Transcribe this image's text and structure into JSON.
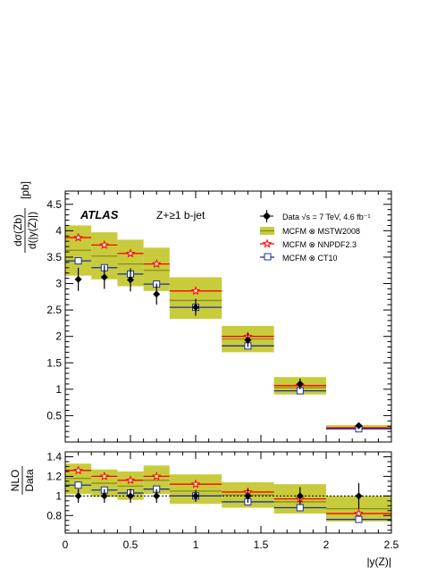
{
  "chart_data": [
    {
      "type": "scatter",
      "panel": "main",
      "experiment": "ATLAS",
      "selection": "Z+≥1 b-jet",
      "ylabel_num": "dσ(Zb)",
      "ylabel_den": "d(|y(Z)|)",
      "ylabel_unit": "[pb]",
      "xlim": [
        0,
        2.5
      ],
      "ylim": [
        0,
        4.75
      ],
      "yticks": [
        0.5,
        1,
        1.5,
        2,
        2.5,
        3,
        3.5,
        4,
        4.5
      ],
      "ytick_labels": [
        "0.5",
        "1",
        "1.5",
        "2",
        "2.5",
        "3",
        "3.5",
        "4",
        "4.5"
      ],
      "legend_position": "top-right",
      "legend": [
        {
          "key": "data",
          "label": "Data √s = 7 TeV, 4.6 fb⁻¹"
        },
        {
          "key": "mstw",
          "label": "MCFM ⊗ MSTW2008"
        },
        {
          "key": "nnpdf",
          "label": "MCFM ⊗ NNPDF2.3"
        },
        {
          "key": "ct10",
          "label": "MCFM ⊗ CT10"
        }
      ],
      "colors": {
        "band": "#c8cc3c",
        "mstw": "#8a8c1a",
        "nnpdf": "#ff0000",
        "ct10": "#1f2fa0",
        "data": "#000000"
      },
      "bins": [
        [
          0,
          0.2
        ],
        [
          0.2,
          0.4
        ],
        [
          0.4,
          0.6
        ],
        [
          0.6,
          0.8
        ],
        [
          0.8,
          1.2
        ],
        [
          1.2,
          1.6
        ],
        [
          1.6,
          2.0
        ],
        [
          2.0,
          2.5
        ]
      ],
      "series": [
        {
          "key": "data",
          "x": [
            0.1,
            0.3,
            0.5,
            0.7,
            1.0,
            1.4,
            1.8,
            2.25
          ],
          "values": [
            3.08,
            3.12,
            3.07,
            2.8,
            2.55,
            1.93,
            1.1,
            0.31
          ],
          "err": [
            0.22,
            0.22,
            0.22,
            0.2,
            0.16,
            0.13,
            0.1,
            0.04
          ]
        },
        {
          "key": "mstw",
          "values": [
            3.63,
            3.52,
            3.37,
            3.25,
            2.68,
            1.95,
            1.03,
            0.27
          ],
          "band_low": [
            3.15,
            3.08,
            2.95,
            2.86,
            2.33,
            1.7,
            0.9,
            0.24
          ],
          "band_high": [
            4.1,
            3.97,
            3.83,
            3.68,
            3.12,
            2.2,
            1.23,
            0.32
          ]
        },
        {
          "key": "nnpdf",
          "values": [
            3.87,
            3.73,
            3.57,
            3.37,
            2.86,
            2.0,
            1.07,
            0.27
          ],
          "err": [
            0.05,
            0.05,
            0.05,
            0.05,
            0.05,
            0.04,
            0.03,
            0.01
          ]
        },
        {
          "key": "ct10",
          "values": [
            3.43,
            3.3,
            3.18,
            2.99,
            2.55,
            1.82,
            0.97,
            0.25
          ],
          "err": [
            0.05,
            0.05,
            0.05,
            0.05,
            0.05,
            0.04,
            0.03,
            0.01
          ]
        }
      ]
    },
    {
      "type": "scatter",
      "panel": "ratio",
      "ylabel_num": "NLO",
      "ylabel_den": "Data",
      "xlabel": "|y(Z)|",
      "xlim": [
        0,
        2.5
      ],
      "ylim": [
        0.62,
        1.45
      ],
      "yticks": [
        0.8,
        1,
        1.2,
        1.4
      ],
      "ytick_labels": [
        "0.8",
        "1",
        "1.2",
        "1.4"
      ],
      "xticks": [
        0,
        0.5,
        1,
        1.5,
        2,
        2.5
      ],
      "xtick_labels": [
        "0",
        "0.5",
        "1",
        "1.5",
        "2",
        "2.5"
      ],
      "series": [
        {
          "key": "data",
          "values": [
            1,
            1,
            1,
            1,
            1,
            1,
            1,
            1
          ],
          "err": [
            0.07,
            0.07,
            0.07,
            0.07,
            0.06,
            0.07,
            0.09,
            0.13
          ]
        },
        {
          "key": "mstw",
          "values": [
            1.18,
            1.13,
            1.1,
            1.16,
            1.05,
            1.01,
            0.94,
            0.87
          ],
          "band_low": [
            1.02,
            0.99,
            0.96,
            1.02,
            0.92,
            0.88,
            0.82,
            0.74
          ],
          "band_high": [
            1.33,
            1.27,
            1.25,
            1.31,
            1.22,
            1.14,
            1.12,
            1.0
          ]
        },
        {
          "key": "nnpdf",
          "values": [
            1.26,
            1.2,
            1.16,
            1.2,
            1.12,
            1.04,
            0.97,
            0.82
          ],
          "err": [
            0.02,
            0.02,
            0.02,
            0.02,
            0.02,
            0.02,
            0.02,
            0.03
          ]
        },
        {
          "key": "ct10",
          "values": [
            1.11,
            1.06,
            1.03,
            1.07,
            1.0,
            0.94,
            0.88,
            0.76
          ],
          "err": [
            0.02,
            0.02,
            0.02,
            0.02,
            0.02,
            0.02,
            0.02,
            0.03
          ]
        }
      ]
    }
  ]
}
